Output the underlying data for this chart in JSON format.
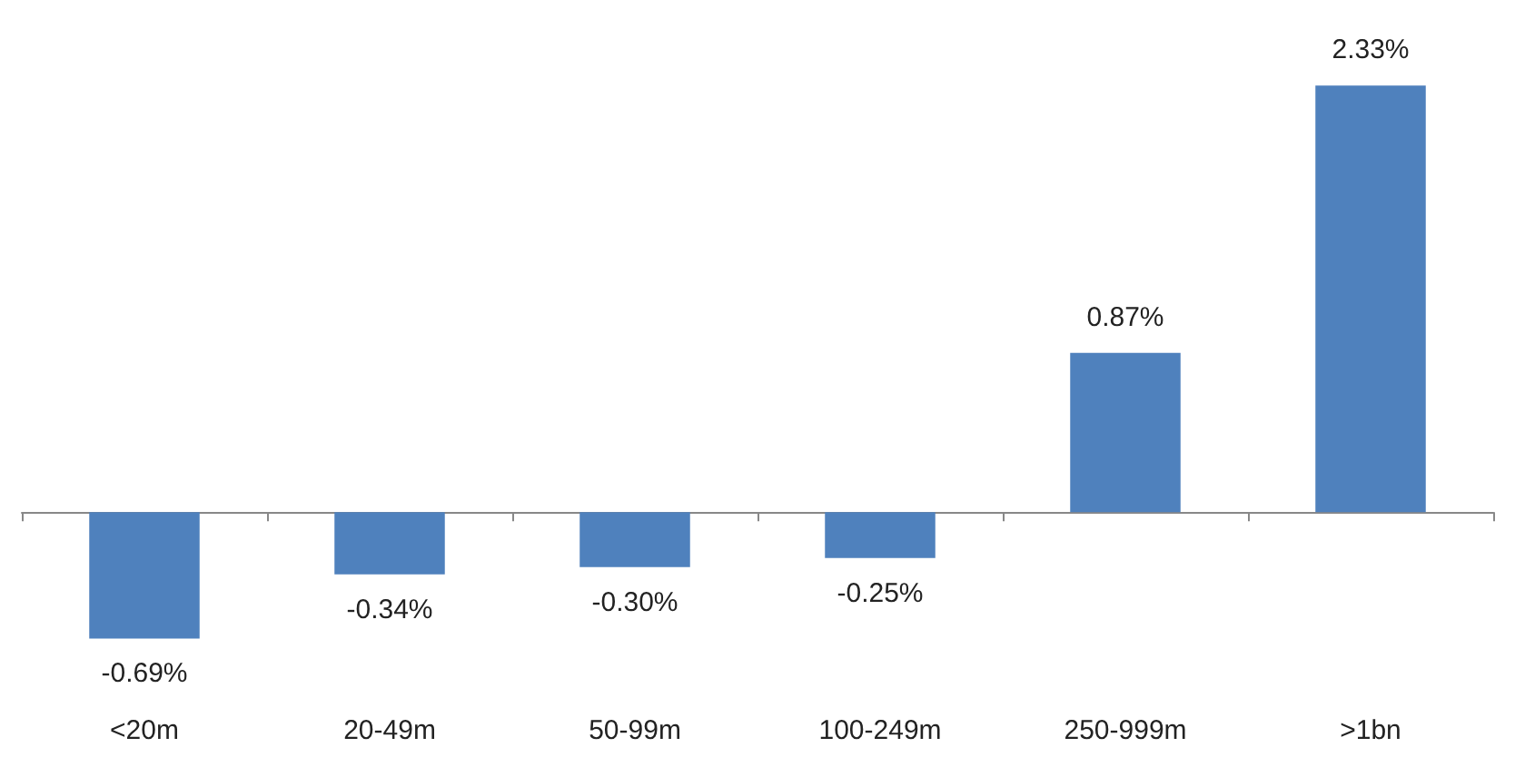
{
  "chart_data": {
    "type": "bar",
    "categories": [
      "<20m",
      "20-49m",
      "50-99m",
      "100-249m",
      "250-999m",
      ">1bn"
    ],
    "values": [
      -0.69,
      -0.34,
      -0.3,
      -0.25,
      0.87,
      2.33
    ],
    "value_labels": [
      "-0.69%",
      "-0.34%",
      "-0.30%",
      "-0.25%",
      "0.87%",
      "2.33%"
    ],
    "color": "#4f81bd"
  }
}
